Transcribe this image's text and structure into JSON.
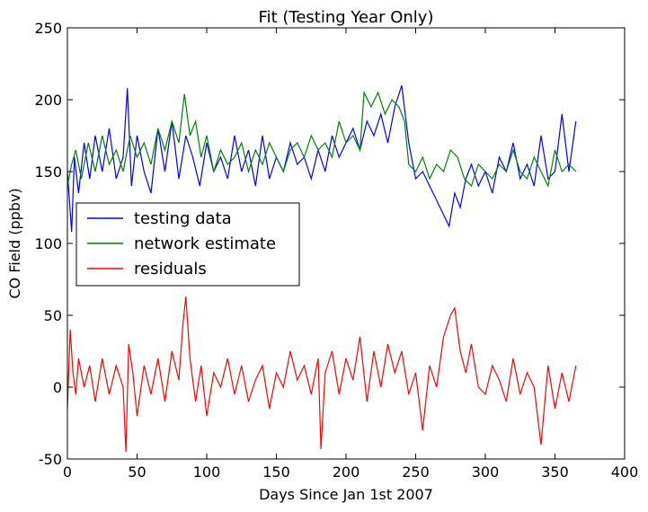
{
  "chart_data": {
    "type": "line",
    "title": "Fit (Testing Year Only)",
    "xlabel": "Days Since Jan 1st 2007",
    "ylabel": "CO Field (ppbv)",
    "xlim": [
      0,
      400
    ],
    "ylim": [
      -50,
      250
    ],
    "xticks": [
      0,
      50,
      100,
      150,
      200,
      250,
      300,
      350,
      400
    ],
    "yticks": [
      -50,
      0,
      50,
      100,
      150,
      200,
      250
    ],
    "grid": false,
    "legend_position": "center-left",
    "series": [
      {
        "name": "testing data",
        "color": "#0000ff",
        "x": [
          0,
          3,
          5,
          8,
          12,
          16,
          20,
          25,
          30,
          35,
          40,
          43,
          46,
          50,
          55,
          60,
          65,
          70,
          75,
          80,
          85,
          90,
          95,
          100,
          105,
          110,
          115,
          120,
          125,
          130,
          135,
          140,
          145,
          150,
          155,
          160,
          165,
          170,
          175,
          180,
          185,
          190,
          195,
          200,
          205,
          210,
          215,
          220,
          225,
          230,
          235,
          240,
          245,
          250,
          255,
          260,
          265,
          270,
          274,
          278,
          282,
          286,
          290,
          295,
          300,
          305,
          310,
          315,
          320,
          325,
          330,
          335,
          340,
          345,
          350,
          355,
          360,
          365
        ],
        "y": [
          150,
          108,
          160,
          135,
          170,
          145,
          175,
          150,
          180,
          145,
          160,
          208,
          140,
          175,
          150,
          135,
          180,
          150,
          185,
          145,
          175,
          160,
          140,
          170,
          150,
          160,
          145,
          175,
          150,
          165,
          140,
          175,
          145,
          160,
          150,
          170,
          155,
          160,
          145,
          165,
          150,
          175,
          160,
          170,
          180,
          165,
          185,
          175,
          190,
          170,
          195,
          210,
          170,
          145,
          150,
          140,
          130,
          120,
          112,
          135,
          125,
          145,
          155,
          140,
          150,
          135,
          160,
          150,
          170,
          145,
          155,
          140,
          175,
          145,
          150,
          190,
          150,
          185
        ]
      },
      {
        "name": "network estimate",
        "color": "#008000",
        "x": [
          0,
          3,
          6,
          10,
          15,
          20,
          25,
          30,
          35,
          40,
          45,
          50,
          55,
          60,
          65,
          70,
          75,
          80,
          84,
          88,
          92,
          96,
          100,
          105,
          110,
          115,
          120,
          125,
          130,
          135,
          140,
          145,
          150,
          155,
          160,
          165,
          170,
          175,
          180,
          185,
          190,
          195,
          200,
          205,
          210,
          213,
          218,
          223,
          228,
          233,
          238,
          242,
          245,
          250,
          255,
          260,
          265,
          270,
          275,
          280,
          285,
          290,
          295,
          300,
          305,
          310,
          315,
          320,
          325,
          330,
          335,
          340,
          345,
          350,
          355,
          360,
          365
        ],
        "y": [
          140,
          155,
          165,
          145,
          170,
          150,
          175,
          155,
          165,
          150,
          175,
          160,
          170,
          155,
          180,
          165,
          185,
          170,
          204,
          175,
          185,
          160,
          175,
          150,
          165,
          155,
          160,
          170,
          150,
          165,
          155,
          170,
          160,
          150,
          165,
          170,
          160,
          175,
          165,
          170,
          160,
          185,
          170,
          175,
          165,
          205,
          195,
          205,
          190,
          200,
          195,
          185,
          155,
          150,
          160,
          145,
          155,
          150,
          165,
          160,
          145,
          140,
          155,
          150,
          145,
          155,
          150,
          165,
          150,
          145,
          160,
          150,
          140,
          165,
          150,
          155,
          150
        ]
      },
      {
        "name": "residuals",
        "color": "#ff0000",
        "x": [
          0,
          2,
          4,
          6,
          8,
          12,
          16,
          20,
          25,
          30,
          35,
          40,
          42,
          44,
          47,
          50,
          55,
          60,
          65,
          70,
          75,
          80,
          83,
          85,
          88,
          92,
          96,
          100,
          105,
          110,
          115,
          120,
          125,
          130,
          135,
          140,
          145,
          150,
          155,
          160,
          165,
          170,
          175,
          180,
          182,
          185,
          190,
          195,
          200,
          205,
          210,
          215,
          220,
          225,
          230,
          235,
          240,
          245,
          250,
          255,
          260,
          265,
          270,
          275,
          278,
          282,
          286,
          290,
          295,
          300,
          305,
          310,
          315,
          320,
          325,
          330,
          335,
          340,
          345,
          350,
          355,
          360,
          365
        ],
        "y": [
          -15,
          40,
          10,
          -5,
          20,
          0,
          15,
          -10,
          20,
          -5,
          15,
          0,
          -45,
          30,
          10,
          -20,
          15,
          -5,
          20,
          -10,
          25,
          5,
          45,
          63,
          20,
          -10,
          15,
          -20,
          10,
          0,
          20,
          -5,
          15,
          -10,
          5,
          15,
          -15,
          10,
          0,
          25,
          5,
          15,
          -5,
          20,
          -43,
          10,
          25,
          -5,
          20,
          5,
          35,
          -10,
          25,
          0,
          30,
          10,
          25,
          -5,
          10,
          -30,
          15,
          0,
          35,
          50,
          55,
          25,
          10,
          30,
          0,
          -5,
          15,
          5,
          -10,
          20,
          -5,
          10,
          0,
          -40,
          15,
          -15,
          10,
          -10,
          15
        ]
      }
    ]
  }
}
